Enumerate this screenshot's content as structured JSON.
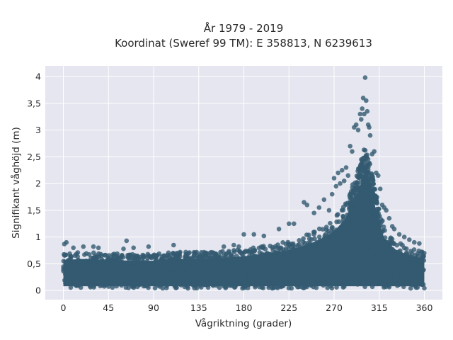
{
  "chart_data": {
    "type": "scatter",
    "title": "År 1979 - 2019",
    "subtitle": "Koordinat (Sweref 99 TM): E 358813, N 6239613",
    "xlabel": "Vågriktning (grader)",
    "ylabel": "Signifikant våghöjd (m)",
    "xlim": [
      -18,
      378
    ],
    "ylim": [
      -0.17,
      4.2
    ],
    "x_ticks": [
      0,
      45,
      90,
      135,
      180,
      225,
      270,
      315,
      360
    ],
    "x_tick_labels": [
      "0",
      "45",
      "90",
      "135",
      "180",
      "225",
      "270",
      "315",
      "360"
    ],
    "y_ticks": [
      0,
      0.5,
      1,
      1.5,
      2,
      2.5,
      3,
      3.5,
      4
    ],
    "y_tick_labels": [
      "0",
      "0,5",
      "1",
      "1,5",
      "2",
      "2,5",
      "3",
      "3,5",
      "4"
    ],
    "grid": true,
    "colors": {
      "marker": "#335a70",
      "plot_background": "#e5e6ef",
      "grid": "#ffffff"
    },
    "envelope": {
      "description": "upper edge of the dense point cloud",
      "x": [
        0,
        20,
        45,
        70,
        90,
        110,
        135,
        160,
        180,
        200,
        225,
        240,
        255,
        270,
        280,
        290,
        297,
        300,
        305,
        310,
        315,
        320,
        330,
        345,
        360
      ],
      "y": [
        0.7,
        0.72,
        0.7,
        0.68,
        0.68,
        0.72,
        0.72,
        0.74,
        0.78,
        0.84,
        0.92,
        1.02,
        1.15,
        1.35,
        1.6,
        2.05,
        2.45,
        2.7,
        2.45,
        2.0,
        1.55,
        1.2,
        0.95,
        0.8,
        0.72
      ]
    },
    "outliers": {
      "x": [
        1,
        3,
        10,
        20,
        30,
        35,
        60,
        63,
        70,
        85,
        110,
        160,
        170,
        175,
        180,
        190,
        200,
        215,
        225,
        230,
        240,
        243,
        250,
        255,
        260,
        265,
        268,
        270,
        272,
        274,
        276,
        278,
        280,
        282,
        284,
        286,
        288,
        290,
        292,
        294,
        296,
        297,
        298,
        299,
        300,
        301,
        302,
        303,
        304,
        305,
        306,
        308,
        310,
        312,
        314,
        316,
        318,
        320,
        322,
        325,
        328,
        330,
        335,
        340,
        345,
        350,
        355
      ],
      "y": [
        0.87,
        0.9,
        0.8,
        0.82,
        0.82,
        0.8,
        0.78,
        0.93,
        0.8,
        0.82,
        0.85,
        0.82,
        0.85,
        0.82,
        1.05,
        1.05,
        1.02,
        1.15,
        1.25,
        1.25,
        1.65,
        1.6,
        1.45,
        1.55,
        1.7,
        1.5,
        1.8,
        2.1,
        1.95,
        2.2,
        2.0,
        2.25,
        2.05,
        2.3,
        2.15,
        2.7,
        2.6,
        3.05,
        3.1,
        3.0,
        3.3,
        3.2,
        3.4,
        3.6,
        3.3,
        3.98,
        3.55,
        3.35,
        3.1,
        3.05,
        2.9,
        2.55,
        2.6,
        2.2,
        2.15,
        1.9,
        1.6,
        1.55,
        1.5,
        1.35,
        1.2,
        1.15,
        1.05,
        1.0,
        0.95,
        0.9,
        0.88
      ]
    }
  }
}
